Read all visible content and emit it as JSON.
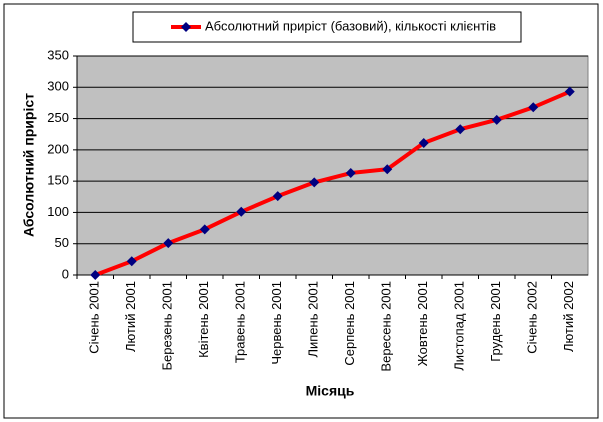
{
  "chart_data": {
    "type": "line",
    "x_label": "Місяць",
    "y_label": "Абсолютний приріст",
    "categories": [
      "Січень 2001",
      "Лютий 2001",
      "Березень 2001",
      "Квітень 2001",
      "Травень 2001",
      "Червень 2001",
      "Липень 2001",
      "Серпень 2001",
      "Вересень 2001",
      "Жовтень 2001",
      "Листопад 2001",
      "Грудень 2001",
      "Січень 2002",
      "Лютий 2002"
    ],
    "series": [
      {
        "name": "Абсолютний приріст (базовий), кількості клієнтів",
        "color": "#ff0000",
        "marker_color": "#000080",
        "values": [
          0,
          22,
          51,
          73,
          101,
          126,
          148,
          163,
          169,
          211,
          233,
          248,
          268,
          293
        ]
      }
    ],
    "ylim": [
      0,
      350
    ],
    "yticks": [
      0,
      50,
      100,
      150,
      200,
      250,
      300,
      350
    ],
    "grid": true,
    "legend": "top"
  }
}
